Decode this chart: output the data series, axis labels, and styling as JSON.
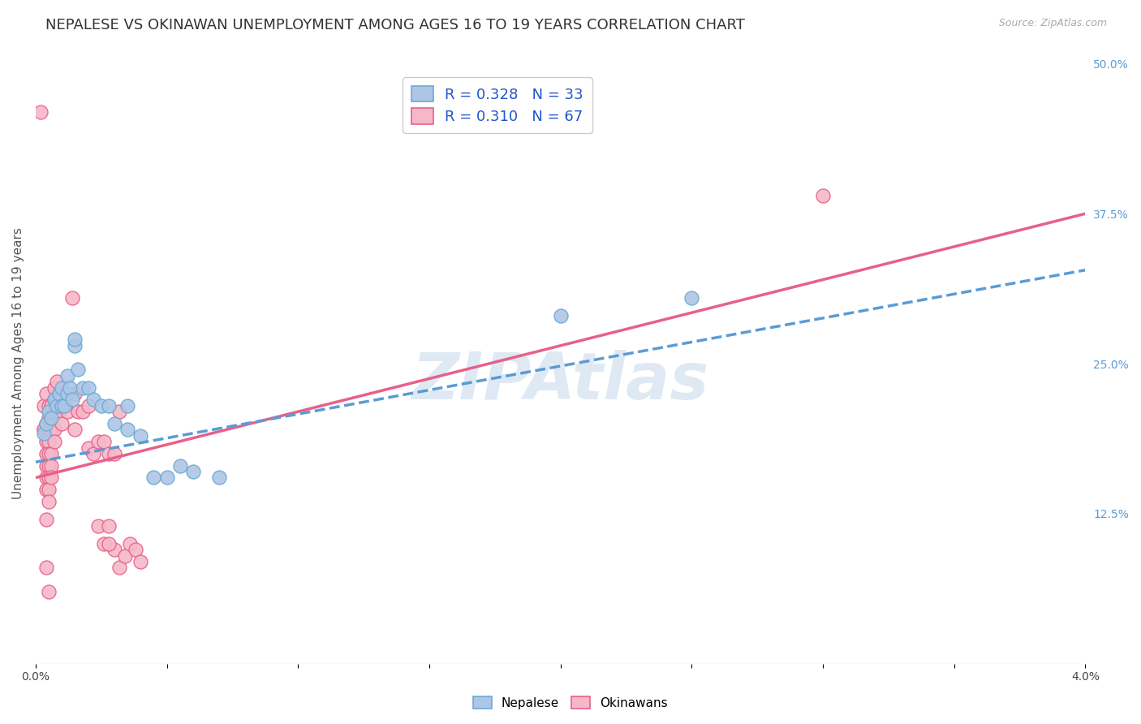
{
  "title": "NEPALESE VS OKINAWAN UNEMPLOYMENT AMONG AGES 16 TO 19 YEARS CORRELATION CHART",
  "source": "Source: ZipAtlas.com",
  "ylabel": "Unemployment Among Ages 16 to 19 years",
  "xlim": [
    0.0,
    0.04
  ],
  "ylim": [
    0.0,
    0.5
  ],
  "xticks": [
    0.0,
    0.005,
    0.01,
    0.015,
    0.02,
    0.025,
    0.03,
    0.035,
    0.04
  ],
  "yticks_right": [
    0.125,
    0.25,
    0.375,
    0.5
  ],
  "yticklabels_right": [
    "12.5%",
    "25.0%",
    "37.5%",
    "50.0%"
  ],
  "watermark": "ZIPAtlas",
  "nepalese_color": "#adc6e5",
  "nepalese_edge_color": "#6aaad4",
  "okinawan_color": "#f5b8c8",
  "okinawan_edge_color": "#e8608a",
  "nepalese_line_color": "#5b9bd5",
  "okinawan_line_color": "#e8608a",
  "neo_intercept": 0.168,
  "neo_slope": 4.0,
  "oki_intercept": 0.155,
  "oki_slope": 5.5,
  "nepalese_scatter": [
    [
      0.0003,
      0.192
    ],
    [
      0.0004,
      0.2
    ],
    [
      0.0005,
      0.21
    ],
    [
      0.0006,
      0.205
    ],
    [
      0.0007,
      0.22
    ],
    [
      0.0008,
      0.215
    ],
    [
      0.0009,
      0.225
    ],
    [
      0.001,
      0.215
    ],
    [
      0.001,
      0.23
    ],
    [
      0.0011,
      0.215
    ],
    [
      0.0012,
      0.225
    ],
    [
      0.0012,
      0.24
    ],
    [
      0.0013,
      0.23
    ],
    [
      0.0014,
      0.22
    ],
    [
      0.0015,
      0.265
    ],
    [
      0.0015,
      0.27
    ],
    [
      0.0016,
      0.245
    ],
    [
      0.0018,
      0.23
    ],
    [
      0.002,
      0.23
    ],
    [
      0.0022,
      0.22
    ],
    [
      0.0025,
      0.215
    ],
    [
      0.0028,
      0.215
    ],
    [
      0.003,
      0.2
    ],
    [
      0.0035,
      0.215
    ],
    [
      0.0035,
      0.195
    ],
    [
      0.004,
      0.19
    ],
    [
      0.0045,
      0.155
    ],
    [
      0.005,
      0.155
    ],
    [
      0.0055,
      0.165
    ],
    [
      0.006,
      0.16
    ],
    [
      0.007,
      0.155
    ],
    [
      0.02,
      0.29
    ],
    [
      0.025,
      0.305
    ]
  ],
  "okinawan_scatter": [
    [
      0.0002,
      0.46
    ],
    [
      0.0003,
      0.195
    ],
    [
      0.0003,
      0.215
    ],
    [
      0.0003,
      0.195
    ],
    [
      0.0004,
      0.225
    ],
    [
      0.0004,
      0.2
    ],
    [
      0.0004,
      0.185
    ],
    [
      0.0004,
      0.175
    ],
    [
      0.0004,
      0.165
    ],
    [
      0.0004,
      0.155
    ],
    [
      0.0004,
      0.145
    ],
    [
      0.0004,
      0.12
    ],
    [
      0.0004,
      0.08
    ],
    [
      0.0005,
      0.215
    ],
    [
      0.0005,
      0.205
    ],
    [
      0.0005,
      0.195
    ],
    [
      0.0005,
      0.185
    ],
    [
      0.0005,
      0.175
    ],
    [
      0.0005,
      0.165
    ],
    [
      0.0005,
      0.155
    ],
    [
      0.0005,
      0.145
    ],
    [
      0.0005,
      0.135
    ],
    [
      0.0005,
      0.06
    ],
    [
      0.0006,
      0.215
    ],
    [
      0.0006,
      0.205
    ],
    [
      0.0006,
      0.195
    ],
    [
      0.0006,
      0.175
    ],
    [
      0.0006,
      0.165
    ],
    [
      0.0006,
      0.155
    ],
    [
      0.0007,
      0.23
    ],
    [
      0.0007,
      0.22
    ],
    [
      0.0007,
      0.21
    ],
    [
      0.0007,
      0.195
    ],
    [
      0.0007,
      0.185
    ],
    [
      0.0008,
      0.235
    ],
    [
      0.0008,
      0.22
    ],
    [
      0.0009,
      0.225
    ],
    [
      0.0009,
      0.21
    ],
    [
      0.001,
      0.215
    ],
    [
      0.001,
      0.2
    ],
    [
      0.0011,
      0.215
    ],
    [
      0.0012,
      0.21
    ],
    [
      0.0014,
      0.305
    ],
    [
      0.0015,
      0.225
    ],
    [
      0.0015,
      0.195
    ],
    [
      0.0016,
      0.21
    ],
    [
      0.0018,
      0.21
    ],
    [
      0.002,
      0.215
    ],
    [
      0.002,
      0.18
    ],
    [
      0.0022,
      0.175
    ],
    [
      0.0024,
      0.185
    ],
    [
      0.0024,
      0.115
    ],
    [
      0.0026,
      0.185
    ],
    [
      0.0026,
      0.1
    ],
    [
      0.0028,
      0.175
    ],
    [
      0.003,
      0.175
    ],
    [
      0.003,
      0.095
    ],
    [
      0.0032,
      0.21
    ],
    [
      0.0032,
      0.08
    ],
    [
      0.0034,
      0.09
    ],
    [
      0.0036,
      0.1
    ],
    [
      0.0038,
      0.095
    ],
    [
      0.004,
      0.085
    ],
    [
      0.0028,
      0.115
    ],
    [
      0.0028,
      0.1
    ],
    [
      0.03,
      0.39
    ]
  ],
  "background_color": "#ffffff",
  "grid_color": "#cccccc",
  "title_fontsize": 13,
  "label_fontsize": 11,
  "tick_fontsize": 10
}
